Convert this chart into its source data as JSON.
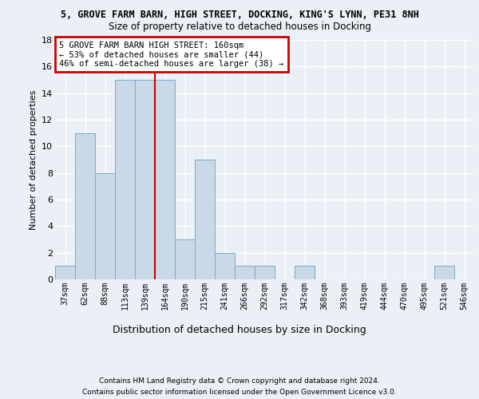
{
  "title1": "5, GROVE FARM BARN, HIGH STREET, DOCKING, KING'S LYNN, PE31 8NH",
  "title2": "Size of property relative to detached houses in Docking",
  "xlabel": "Distribution of detached houses by size in Docking",
  "ylabel": "Number of detached properties",
  "bin_labels": [
    "37sqm",
    "62sqm",
    "88sqm",
    "113sqm",
    "139sqm",
    "164sqm",
    "190sqm",
    "215sqm",
    "241sqm",
    "266sqm",
    "292sqm",
    "317sqm",
    "342sqm",
    "368sqm",
    "393sqm",
    "419sqm",
    "444sqm",
    "470sqm",
    "495sqm",
    "521sqm",
    "546sqm"
  ],
  "bar_values": [
    1,
    11,
    8,
    15,
    15,
    15,
    3,
    9,
    2,
    1,
    1,
    0,
    1,
    0,
    0,
    0,
    0,
    0,
    0,
    1,
    0
  ],
  "bar_color": "#c9d9e8",
  "bar_edge_color": "#7aaac8",
  "annotation_text": "5 GROVE FARM BARN HIGH STREET: 160sqm\n← 53% of detached houses are smaller (44)\n46% of semi-detached houses are larger (38) →",
  "annotation_box_color": "#ffffff",
  "annotation_border_color": "#cc0000",
  "red_line_color": "#cc0000",
  "ylim": [
    0,
    18
  ],
  "yticks": [
    0,
    2,
    4,
    6,
    8,
    10,
    12,
    14,
    16,
    18
  ],
  "footer_line1": "Contains HM Land Registry data © Crown copyright and database right 2024.",
  "footer_line2": "Contains public sector information licensed under the Open Government Licence v3.0.",
  "bg_color": "#eaf0f6",
  "plot_bg_color": "#eaf0f6",
  "grid_color": "#ffffff"
}
